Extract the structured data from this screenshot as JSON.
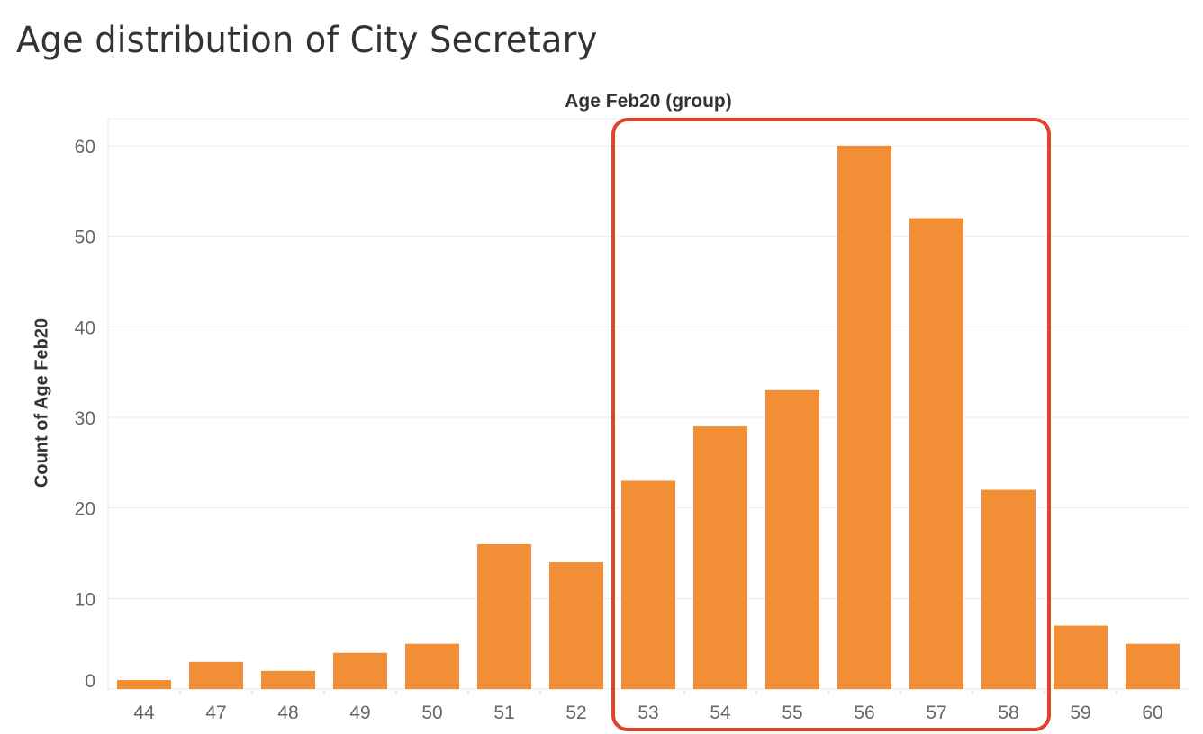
{
  "chart_data": {
    "type": "bar",
    "title": "Age distribution of City Secretary",
    "header_label": "Age Feb20 (group)",
    "ylabel": "Count of Age Feb20",
    "xlabel": "",
    "categories": [
      "44",
      "47",
      "48",
      "49",
      "50",
      "51",
      "52",
      "53",
      "54",
      "55",
      "56",
      "57",
      "58",
      "59",
      "60"
    ],
    "values": [
      1,
      3,
      2,
      4,
      5,
      16,
      14,
      23,
      29,
      33,
      60,
      52,
      22,
      7,
      5
    ],
    "ylim": [
      0,
      60
    ],
    "yticks": [
      "0",
      "10",
      "20",
      "30",
      "40",
      "50",
      "60"
    ],
    "grid": true,
    "bar_color": "#F28E36",
    "highlight": {
      "from_category": "53",
      "to_category": "58",
      "color": "#E0432C"
    }
  }
}
